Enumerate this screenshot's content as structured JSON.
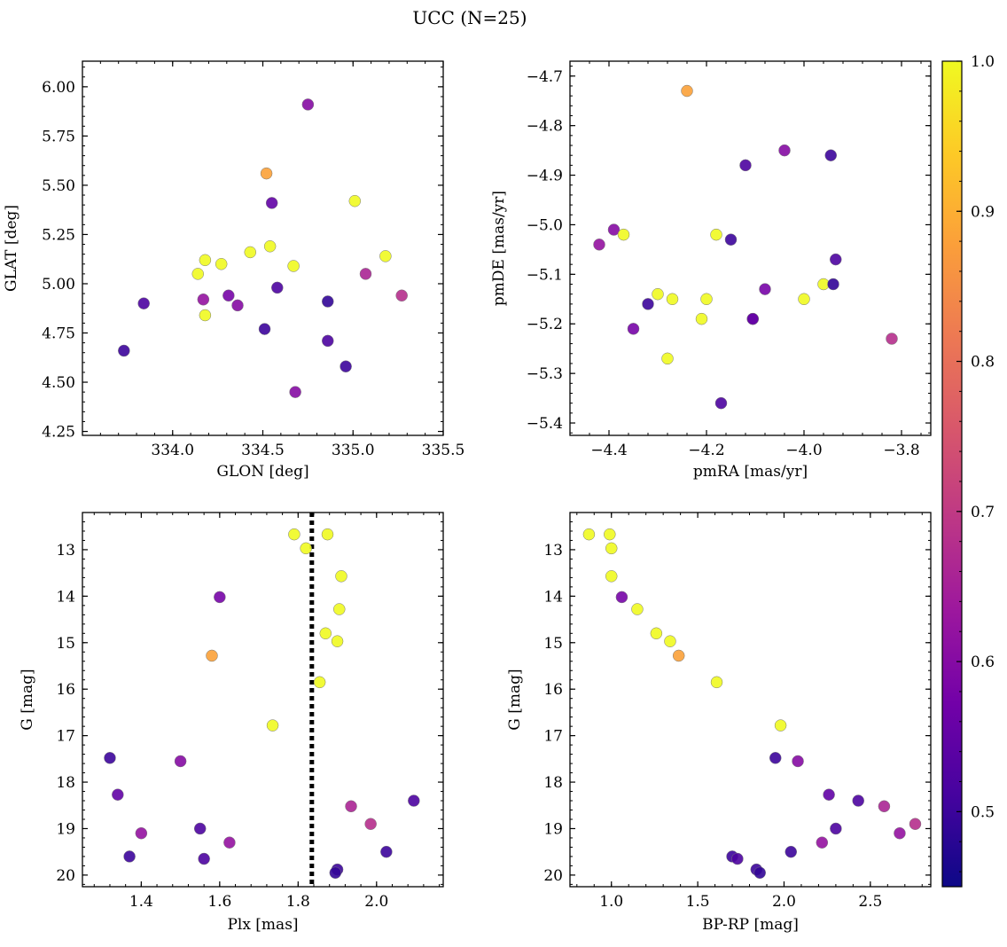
{
  "figure": {
    "title": "UCC (N=25)"
  },
  "colorbar": {
    "vmin": 0.45,
    "vmax": 1.0,
    "ticks": [
      0.5,
      0.6,
      0.7,
      0.8,
      0.9,
      1.0
    ],
    "tick_labels": [
      "0.5",
      "0.6",
      "0.7",
      "0.8",
      "0.9",
      "1.0"
    ],
    "colormap": "plasma",
    "colormap_stops": [
      "#0d0887",
      "#46039f",
      "#7201a8",
      "#9c179e",
      "#bd3786",
      "#d8576b",
      "#ed7953",
      "#fb9f3a",
      "#fdca26",
      "#f0f921"
    ]
  },
  "chart_data": [
    {
      "type": "scatter",
      "title": "",
      "xlabel": "GLON [deg]",
      "ylabel": "GLAT [deg]",
      "xlim": [
        333.5,
        335.5
      ],
      "ylim": [
        4.23,
        6.13
      ],
      "y_inverted": false,
      "xticks": [
        334.0,
        334.5,
        335.0,
        335.5
      ],
      "xtick_labels": [
        "334.0",
        "334.5",
        "335.0",
        "335.5"
      ],
      "yticks": [
        4.25,
        4.5,
        4.75,
        5.0,
        5.25,
        5.5,
        5.75,
        6.0
      ],
      "ytick_labels": [
        "4.25",
        "4.50",
        "4.75",
        "5.00",
        "5.25",
        "5.50",
        "5.75",
        "6.00"
      ],
      "grid": false,
      "points": [
        {
          "x": 333.73,
          "y": 4.66,
          "c": 0.5
        },
        {
          "x": 333.84,
          "y": 4.9,
          "c": 0.52
        },
        {
          "x": 334.14,
          "y": 5.05,
          "c": 1.0
        },
        {
          "x": 334.17,
          "y": 4.92,
          "c": 0.62
        },
        {
          "x": 334.18,
          "y": 5.12,
          "c": 1.0
        },
        {
          "x": 334.18,
          "y": 4.84,
          "c": 1.0
        },
        {
          "x": 334.27,
          "y": 5.1,
          "c": 1.0
        },
        {
          "x": 334.31,
          "y": 4.94,
          "c": 0.58
        },
        {
          "x": 334.36,
          "y": 4.89,
          "c": 0.6
        },
        {
          "x": 334.43,
          "y": 5.16,
          "c": 1.0
        },
        {
          "x": 334.51,
          "y": 4.77,
          "c": 0.5
        },
        {
          "x": 334.52,
          "y": 5.56,
          "c": 0.88
        },
        {
          "x": 334.54,
          "y": 5.19,
          "c": 1.0
        },
        {
          "x": 334.55,
          "y": 5.41,
          "c": 0.55
        },
        {
          "x": 334.58,
          "y": 4.98,
          "c": 0.52
        },
        {
          "x": 334.67,
          "y": 5.09,
          "c": 1.0
        },
        {
          "x": 334.68,
          "y": 4.45,
          "c": 0.6
        },
        {
          "x": 334.75,
          "y": 5.91,
          "c": 0.6
        },
        {
          "x": 334.86,
          "y": 4.91,
          "c": 0.49
        },
        {
          "x": 334.86,
          "y": 4.71,
          "c": 0.52
        },
        {
          "x": 334.96,
          "y": 4.58,
          "c": 0.5
        },
        {
          "x": 335.01,
          "y": 5.42,
          "c": 1.0
        },
        {
          "x": 335.07,
          "y": 5.05,
          "c": 0.66
        },
        {
          "x": 335.18,
          "y": 5.14,
          "c": 1.0
        },
        {
          "x": 335.27,
          "y": 4.94,
          "c": 0.68
        }
      ]
    },
    {
      "type": "scatter",
      "title": "",
      "xlabel": "pmRA [mas/yr]",
      "ylabel": "pmDE [mas/yr]",
      "xlim": [
        -4.48,
        -3.74
      ],
      "ylim": [
        -5.425,
        -4.67
      ],
      "y_inverted": false,
      "xticks": [
        -4.4,
        -4.2,
        -4.0,
        -3.8
      ],
      "xtick_labels": [
        "−4.4",
        "−4.2",
        "−4.0",
        "−3.8"
      ],
      "yticks": [
        -5.4,
        -5.3,
        -5.2,
        -5.1,
        -5.0,
        -4.9,
        -4.8,
        -4.7
      ],
      "ytick_labels": [
        "−5.4",
        "−5.3",
        "−5.2",
        "−5.1",
        "−5.0",
        "−4.9",
        "−4.8",
        "−4.7"
      ],
      "grid": false,
      "points": [
        {
          "x": -4.42,
          "y": -5.04,
          "c": 0.62
        },
        {
          "x": -4.39,
          "y": -5.01,
          "c": 0.6
        },
        {
          "x": -4.37,
          "y": -5.02,
          "c": 1.0
        },
        {
          "x": -4.35,
          "y": -5.21,
          "c": 0.58
        },
        {
          "x": -4.32,
          "y": -5.16,
          "c": 0.5
        },
        {
          "x": -4.3,
          "y": -5.14,
          "c": 1.0
        },
        {
          "x": -4.28,
          "y": -5.27,
          "c": 1.0
        },
        {
          "x": -4.27,
          "y": -5.15,
          "c": 1.0
        },
        {
          "x": -4.24,
          "y": -4.73,
          "c": 0.88
        },
        {
          "x": -4.21,
          "y": -5.19,
          "c": 1.0
        },
        {
          "x": -4.2,
          "y": -5.15,
          "c": 1.0
        },
        {
          "x": -4.18,
          "y": -5.02,
          "c": 1.0
        },
        {
          "x": -4.17,
          "y": -5.36,
          "c": 0.52
        },
        {
          "x": -4.15,
          "y": -5.03,
          "c": 0.5
        },
        {
          "x": -4.12,
          "y": -4.88,
          "c": 0.52
        },
        {
          "x": -4.105,
          "y": -5.19,
          "c": 0.6
        },
        {
          "x": -4.105,
          "y": -5.19,
          "c": 0.55
        },
        {
          "x": -4.08,
          "y": -5.13,
          "c": 0.58
        },
        {
          "x": -4.04,
          "y": -4.85,
          "c": 0.6
        },
        {
          "x": -4.0,
          "y": -5.15,
          "c": 1.0
        },
        {
          "x": -3.96,
          "y": -5.12,
          "c": 1.0
        },
        {
          "x": -3.945,
          "y": -4.86,
          "c": 0.5
        },
        {
          "x": -3.94,
          "y": -5.12,
          "c": 0.49
        },
        {
          "x": -3.935,
          "y": -5.07,
          "c": 0.52
        },
        {
          "x": -3.82,
          "y": -5.23,
          "c": 0.68
        }
      ]
    },
    {
      "type": "scatter",
      "title": "",
      "xlabel": "Plx [mas]",
      "ylabel": "G [mag]",
      "xlim": [
        1.25,
        2.17
      ],
      "ylim": [
        12.2,
        20.25
      ],
      "y_inverted": true,
      "xticks": [
        1.4,
        1.6,
        1.8,
        2.0
      ],
      "xtick_labels": [
        "1.4",
        "1.6",
        "1.8",
        "2.0"
      ],
      "yticks": [
        13,
        14,
        15,
        16,
        17,
        18,
        19,
        20
      ],
      "ytick_labels": [
        "13",
        "14",
        "15",
        "16",
        "17",
        "18",
        "19",
        "20"
      ],
      "grid": false,
      "vline": {
        "x": 1.835,
        "style": "dotted",
        "color": "#000000"
      },
      "points": [
        {
          "x": 1.82,
          "y": 12.97,
          "c": 1.0
        },
        {
          "x": 1.79,
          "y": 12.67,
          "c": 1.0
        },
        {
          "x": 1.875,
          "y": 12.67,
          "c": 1.0
        },
        {
          "x": 1.91,
          "y": 13.57,
          "c": 1.0
        },
        {
          "x": 1.6,
          "y": 14.02,
          "c": 0.58
        },
        {
          "x": 1.905,
          "y": 14.28,
          "c": 1.0
        },
        {
          "x": 1.87,
          "y": 14.8,
          "c": 1.0
        },
        {
          "x": 1.9,
          "y": 14.97,
          "c": 1.0
        },
        {
          "x": 1.58,
          "y": 15.28,
          "c": 0.88
        },
        {
          "x": 1.855,
          "y": 15.85,
          "c": 1.0
        },
        {
          "x": 1.735,
          "y": 16.78,
          "c": 1.0
        },
        {
          "x": 1.32,
          "y": 17.48,
          "c": 0.5
        },
        {
          "x": 1.5,
          "y": 17.55,
          "c": 0.6
        },
        {
          "x": 1.34,
          "y": 18.27,
          "c": 0.55
        },
        {
          "x": 2.095,
          "y": 18.4,
          "c": 0.52
        },
        {
          "x": 1.935,
          "y": 18.52,
          "c": 0.66
        },
        {
          "x": 1.985,
          "y": 18.9,
          "c": 0.68
        },
        {
          "x": 1.55,
          "y": 19.0,
          "c": 0.52
        },
        {
          "x": 1.4,
          "y": 19.1,
          "c": 0.62
        },
        {
          "x": 1.625,
          "y": 19.3,
          "c": 0.62
        },
        {
          "x": 2.025,
          "y": 19.5,
          "c": 0.5
        },
        {
          "x": 1.37,
          "y": 19.6,
          "c": 0.5
        },
        {
          "x": 1.56,
          "y": 19.65,
          "c": 0.52
        },
        {
          "x": 1.9,
          "y": 19.88,
          "c": 0.5
        },
        {
          "x": 1.895,
          "y": 19.95,
          "c": 0.49
        }
      ]
    },
    {
      "type": "scatter",
      "title": "",
      "xlabel": "BP-RP [mag]",
      "ylabel": "G [mag]",
      "xlim": [
        0.76,
        2.85
      ],
      "ylim": [
        12.2,
        20.25
      ],
      "y_inverted": true,
      "xticks": [
        1.0,
        1.5,
        2.0,
        2.5
      ],
      "xtick_labels": [
        "1.0",
        "1.5",
        "2.0",
        "2.5"
      ],
      "yticks": [
        13,
        14,
        15,
        16,
        17,
        18,
        19,
        20
      ],
      "ytick_labels": [
        "13",
        "14",
        "15",
        "16",
        "17",
        "18",
        "19",
        "20"
      ],
      "grid": false,
      "points": [
        {
          "x": 0.87,
          "y": 12.67,
          "c": 1.0
        },
        {
          "x": 0.99,
          "y": 12.67,
          "c": 1.0
        },
        {
          "x": 1.0,
          "y": 12.97,
          "c": 1.0
        },
        {
          "x": 1.0,
          "y": 13.57,
          "c": 1.0
        },
        {
          "x": 1.06,
          "y": 14.02,
          "c": 0.58
        },
        {
          "x": 1.15,
          "y": 14.28,
          "c": 1.0
        },
        {
          "x": 1.26,
          "y": 14.8,
          "c": 1.0
        },
        {
          "x": 1.34,
          "y": 14.97,
          "c": 1.0
        },
        {
          "x": 1.39,
          "y": 15.28,
          "c": 0.88
        },
        {
          "x": 1.61,
          "y": 15.85,
          "c": 1.0
        },
        {
          "x": 1.98,
          "y": 16.78,
          "c": 1.0
        },
        {
          "x": 1.95,
          "y": 17.48,
          "c": 0.5
        },
        {
          "x": 2.08,
          "y": 17.55,
          "c": 0.6
        },
        {
          "x": 2.26,
          "y": 18.27,
          "c": 0.55
        },
        {
          "x": 2.43,
          "y": 18.4,
          "c": 0.52
        },
        {
          "x": 2.58,
          "y": 18.52,
          "c": 0.66
        },
        {
          "x": 2.76,
          "y": 18.9,
          "c": 0.68
        },
        {
          "x": 2.3,
          "y": 19.0,
          "c": 0.52
        },
        {
          "x": 2.67,
          "y": 19.1,
          "c": 0.62
        },
        {
          "x": 2.22,
          "y": 19.3,
          "c": 0.62
        },
        {
          "x": 2.04,
          "y": 19.5,
          "c": 0.5
        },
        {
          "x": 1.7,
          "y": 19.6,
          "c": 0.5
        },
        {
          "x": 1.73,
          "y": 19.65,
          "c": 0.52
        },
        {
          "x": 1.84,
          "y": 19.88,
          "c": 0.5
        },
        {
          "x": 1.86,
          "y": 19.95,
          "c": 0.49
        }
      ]
    }
  ]
}
